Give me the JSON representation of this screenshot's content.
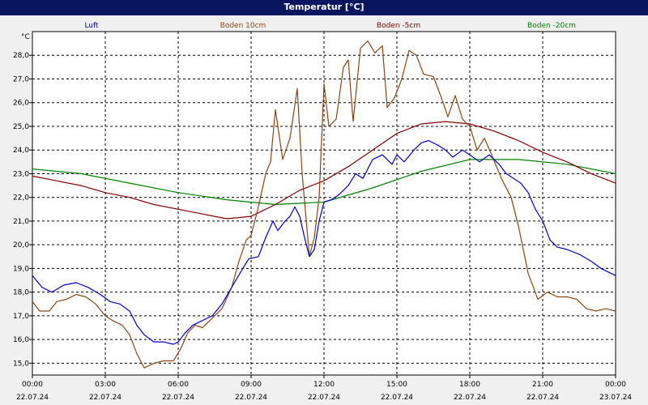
{
  "window": {
    "title": "Temperatur [°C]"
  },
  "chart_data": {
    "type": "line",
    "title": "Temperatur [°C]",
    "ylabel": "°C",
    "xlabel": "",
    "ylim": [
      14.5,
      29.0
    ],
    "xlim": [
      0,
      24
    ],
    "grid": true,
    "legend_position": "top",
    "y_ticks": [
      "15,0",
      "16,0",
      "17,0",
      "18,0",
      "19,0",
      "20,0",
      "21,0",
      "22,0",
      "23,0",
      "24,0",
      "25,0",
      "26,0",
      "27,0",
      "28,0"
    ],
    "y_tick_values": [
      15,
      16,
      17,
      18,
      19,
      20,
      21,
      22,
      23,
      24,
      25,
      26,
      27,
      28
    ],
    "x_ticks": [
      {
        "time": "00:00",
        "date": "22.07.24",
        "hour": 0
      },
      {
        "time": "03:00",
        "date": "22.07.24",
        "hour": 3
      },
      {
        "time": "06:00",
        "date": "22.07.24",
        "hour": 6
      },
      {
        "time": "09:00",
        "date": "22.07.24",
        "hour": 9
      },
      {
        "time": "12:00",
        "date": "22.07.24",
        "hour": 12
      },
      {
        "time": "15:00",
        "date": "22.07.24",
        "hour": 15
      },
      {
        "time": "18:00",
        "date": "22.07.24",
        "hour": 18
      },
      {
        "time": "21:00",
        "date": "22.07.24",
        "hour": 21
      },
      {
        "time": "00:00",
        "date": "23.07.24",
        "hour": 24
      }
    ],
    "series": [
      {
        "name": "Luft",
        "color": "#0000cc",
        "points": [
          [
            0,
            18.7
          ],
          [
            0.4,
            18.2
          ],
          [
            0.8,
            18.0
          ],
          [
            1.3,
            18.3
          ],
          [
            1.8,
            18.4
          ],
          [
            2.3,
            18.2
          ],
          [
            2.8,
            17.9
          ],
          [
            3.2,
            17.6
          ],
          [
            3.6,
            17.5
          ],
          [
            4.0,
            17.2
          ],
          [
            4.3,
            16.6
          ],
          [
            4.6,
            16.2
          ],
          [
            5.0,
            15.9
          ],
          [
            5.4,
            15.9
          ],
          [
            5.8,
            15.8
          ],
          [
            6.0,
            15.9
          ],
          [
            6.3,
            16.3
          ],
          [
            6.6,
            16.6
          ],
          [
            7.0,
            16.8
          ],
          [
            7.4,
            17.0
          ],
          [
            7.8,
            17.5
          ],
          [
            8.2,
            18.2
          ],
          [
            8.6,
            18.9
          ],
          [
            8.9,
            19.4
          ],
          [
            9.3,
            19.5
          ],
          [
            9.6,
            20.3
          ],
          [
            9.9,
            21.0
          ],
          [
            10.1,
            20.6
          ],
          [
            10.4,
            21.0
          ],
          [
            10.6,
            21.2
          ],
          [
            10.8,
            21.6
          ],
          [
            11.0,
            21.2
          ],
          [
            11.2,
            20.3
          ],
          [
            11.4,
            19.5
          ],
          [
            11.6,
            19.8
          ],
          [
            11.8,
            21.0
          ],
          [
            12.0,
            21.8
          ],
          [
            12.3,
            21.9
          ],
          [
            12.6,
            22.1
          ],
          [
            13.0,
            22.5
          ],
          [
            13.3,
            23.0
          ],
          [
            13.6,
            22.8
          ],
          [
            14.0,
            23.6
          ],
          [
            14.4,
            23.8
          ],
          [
            14.8,
            23.4
          ],
          [
            15.0,
            23.8
          ],
          [
            15.3,
            23.5
          ],
          [
            15.7,
            24.0
          ],
          [
            16.0,
            24.3
          ],
          [
            16.3,
            24.4
          ],
          [
            16.7,
            24.2
          ],
          [
            17.0,
            24.0
          ],
          [
            17.3,
            23.7
          ],
          [
            17.7,
            24.0
          ],
          [
            18.0,
            23.8
          ],
          [
            18.4,
            23.5
          ],
          [
            18.8,
            23.8
          ],
          [
            19.2,
            23.4
          ],
          [
            19.5,
            23.0
          ],
          [
            19.8,
            22.8
          ],
          [
            20.1,
            22.6
          ],
          [
            20.4,
            22.2
          ],
          [
            20.7,
            21.5
          ],
          [
            21.0,
            21.0
          ],
          [
            21.3,
            20.2
          ],
          [
            21.6,
            19.9
          ],
          [
            22.0,
            19.8
          ],
          [
            22.5,
            19.6
          ],
          [
            23.0,
            19.3
          ],
          [
            23.4,
            19.0
          ],
          [
            23.8,
            18.8
          ],
          [
            24.0,
            18.7
          ]
        ]
      },
      {
        "name": "Boden 10cm",
        "color": "#8b4513",
        "points": [
          [
            0,
            17.6
          ],
          [
            0.3,
            17.2
          ],
          [
            0.7,
            17.2
          ],
          [
            1.0,
            17.6
          ],
          [
            1.4,
            17.7
          ],
          [
            1.8,
            17.9
          ],
          [
            2.2,
            17.8
          ],
          [
            2.6,
            17.5
          ],
          [
            3.0,
            17.0
          ],
          [
            3.3,
            16.8
          ],
          [
            3.7,
            16.6
          ],
          [
            4.0,
            16.2
          ],
          [
            4.3,
            15.4
          ],
          [
            4.6,
            14.8
          ],
          [
            5.0,
            15.0
          ],
          [
            5.4,
            15.1
          ],
          [
            5.8,
            15.1
          ],
          [
            6.1,
            15.6
          ],
          [
            6.4,
            16.3
          ],
          [
            6.7,
            16.6
          ],
          [
            7.0,
            16.5
          ],
          [
            7.4,
            16.9
          ],
          [
            7.8,
            17.3
          ],
          [
            8.2,
            18.2
          ],
          [
            8.5,
            19.3
          ],
          [
            8.8,
            20.2
          ],
          [
            9.0,
            20.4
          ],
          [
            9.3,
            21.6
          ],
          [
            9.6,
            23.0
          ],
          [
            9.8,
            23.5
          ],
          [
            10.0,
            25.7
          ],
          [
            10.3,
            23.6
          ],
          [
            10.6,
            24.5
          ],
          [
            10.9,
            26.6
          ],
          [
            11.1,
            23.0
          ],
          [
            11.4,
            19.5
          ],
          [
            11.6,
            20.3
          ],
          [
            11.8,
            22.0
          ],
          [
            12.0,
            26.8
          ],
          [
            12.2,
            25.0
          ],
          [
            12.5,
            25.3
          ],
          [
            12.8,
            27.5
          ],
          [
            13.0,
            27.8
          ],
          [
            13.2,
            25.2
          ],
          [
            13.5,
            28.3
          ],
          [
            13.8,
            28.6
          ],
          [
            14.1,
            28.1
          ],
          [
            14.4,
            28.4
          ],
          [
            14.6,
            25.8
          ],
          [
            14.9,
            26.2
          ],
          [
            15.2,
            27.0
          ],
          [
            15.5,
            28.2
          ],
          [
            15.8,
            28.0
          ],
          [
            16.1,
            27.2
          ],
          [
            16.5,
            27.1
          ],
          [
            16.8,
            26.3
          ],
          [
            17.1,
            25.4
          ],
          [
            17.4,
            26.3
          ],
          [
            17.7,
            25.3
          ],
          [
            18.0,
            25.0
          ],
          [
            18.3,
            24.0
          ],
          [
            18.6,
            24.5
          ],
          [
            18.9,
            23.8
          ],
          [
            19.3,
            22.8
          ],
          [
            19.7,
            22.0
          ],
          [
            20.0,
            20.8
          ],
          [
            20.4,
            18.8
          ],
          [
            20.8,
            17.7
          ],
          [
            21.2,
            18.0
          ],
          [
            21.6,
            17.8
          ],
          [
            22.0,
            17.8
          ],
          [
            22.4,
            17.7
          ],
          [
            22.8,
            17.3
          ],
          [
            23.2,
            17.2
          ],
          [
            23.6,
            17.3
          ],
          [
            24.0,
            17.2
          ]
        ]
      },
      {
        "name": "Boden -5cm",
        "color": "#800000",
        "points": [
          [
            0,
            22.9
          ],
          [
            1,
            22.7
          ],
          [
            2,
            22.5
          ],
          [
            3,
            22.2
          ],
          [
            4,
            22.0
          ],
          [
            5,
            21.7
          ],
          [
            6,
            21.5
          ],
          [
            7,
            21.3
          ],
          [
            8,
            21.1
          ],
          [
            9,
            21.2
          ],
          [
            10,
            21.7
          ],
          [
            11,
            22.3
          ],
          [
            12,
            22.7
          ],
          [
            13,
            23.3
          ],
          [
            14,
            24.0
          ],
          [
            15,
            24.7
          ],
          [
            16,
            25.1
          ],
          [
            17,
            25.2
          ],
          [
            18,
            25.1
          ],
          [
            19,
            24.8
          ],
          [
            20,
            24.4
          ],
          [
            21,
            23.9
          ],
          [
            22,
            23.5
          ],
          [
            23,
            23.0
          ],
          [
            24,
            22.6
          ]
        ]
      },
      {
        "name": "Boden -20cm",
        "color": "#008000",
        "points": [
          [
            0,
            23.2
          ],
          [
            2,
            23.0
          ],
          [
            4,
            22.6
          ],
          [
            6,
            22.2
          ],
          [
            8,
            21.9
          ],
          [
            10,
            21.7
          ],
          [
            12,
            21.8
          ],
          [
            14,
            22.4
          ],
          [
            16,
            23.1
          ],
          [
            18,
            23.6
          ],
          [
            20,
            23.6
          ],
          [
            22,
            23.4
          ],
          [
            24,
            23.0
          ]
        ]
      }
    ]
  }
}
